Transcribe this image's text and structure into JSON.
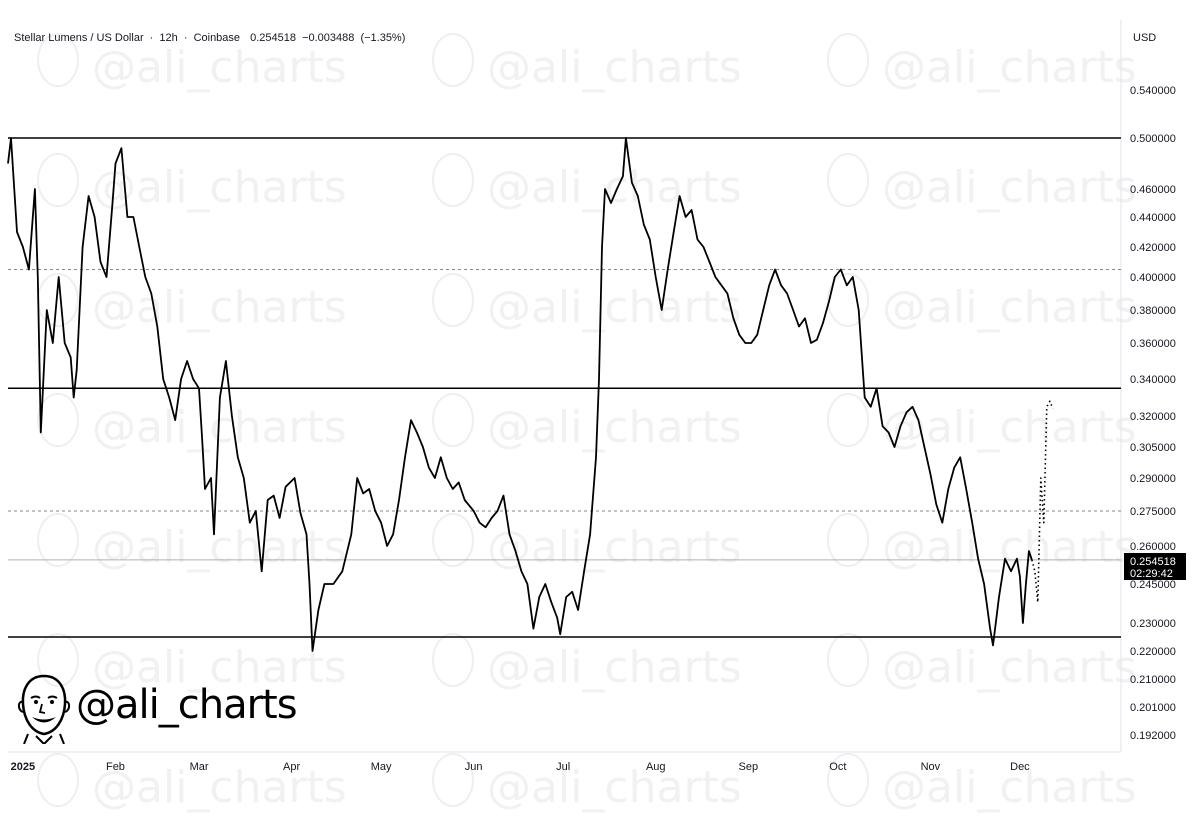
{
  "header": {
    "symbol": "Stellar Lumens / US Dollar",
    "interval": "12h",
    "exchange": "Coinbase",
    "last": "0.254518",
    "change": "−0.003488",
    "change_pct": "(−1.35%)",
    "currency": "USD"
  },
  "price_tag": {
    "value": "0.254518",
    "countdown": "02:29:42"
  },
  "branding": {
    "handle": "@ali_charts",
    "watermark": "@ali_charts"
  },
  "chart_data": {
    "type": "line",
    "title": "Stellar Lumens / US Dollar · 12h · Coinbase",
    "ylabel": "USD",
    "y_ticks": [
      "0.540000",
      "0.500000",
      "0.460000",
      "0.440000",
      "0.420000",
      "0.400000",
      "0.380000",
      "0.360000",
      "0.340000",
      "0.320000",
      "0.305000",
      "0.290000",
      "0.275000",
      "0.260000",
      "0.245000",
      "0.230000",
      "0.220000",
      "0.210000",
      "0.201000",
      "0.192000"
    ],
    "x_ticks": [
      "2025",
      "Feb",
      "Mar",
      "Apr",
      "May",
      "Jun",
      "Jul",
      "Aug",
      "Sep",
      "Oct",
      "Nov",
      "Dec"
    ],
    "x_range": [
      "2024-12-27",
      "2025-12-08"
    ],
    "grid": false,
    "horizontal_levels": [
      {
        "value": 0.5,
        "style": "solid"
      },
      {
        "value": 0.405,
        "style": "dashed"
      },
      {
        "value": 0.335,
        "style": "solid"
      },
      {
        "value": 0.275,
        "style": "dashed"
      },
      {
        "value": 0.2545,
        "style": "thin"
      },
      {
        "value": 0.225,
        "style": "solid"
      }
    ],
    "series": [
      {
        "line": "solid",
        "points": [
          [
            "2024-12-27",
            0.48
          ],
          [
            "2024-12-28",
            0.5
          ],
          [
            "2024-12-30",
            0.43
          ],
          [
            "2025-01-01",
            0.42
          ],
          [
            "2025-01-03",
            0.405
          ],
          [
            "2025-01-05",
            0.46
          ],
          [
            "2025-01-06",
            0.4
          ],
          [
            "2025-01-07",
            0.312
          ],
          [
            "2025-01-09",
            0.38
          ],
          [
            "2025-01-11",
            0.36
          ],
          [
            "2025-01-13",
            0.4
          ],
          [
            "2025-01-15",
            0.36
          ],
          [
            "2025-01-17",
            0.352
          ],
          [
            "2025-01-18",
            0.33
          ],
          [
            "2025-01-19",
            0.345
          ],
          [
            "2025-01-21",
            0.42
          ],
          [
            "2025-01-23",
            0.455
          ],
          [
            "2025-01-25",
            0.44
          ],
          [
            "2025-01-27",
            0.41
          ],
          [
            "2025-01-29",
            0.4
          ],
          [
            "2025-01-31",
            0.45
          ],
          [
            "2025-02-01",
            0.48
          ],
          [
            "2025-02-03",
            0.492
          ],
          [
            "2025-02-05",
            0.44
          ],
          [
            "2025-02-07",
            0.44
          ],
          [
            "2025-02-09",
            0.42
          ],
          [
            "2025-02-11",
            0.4
          ],
          [
            "2025-02-13",
            0.39
          ],
          [
            "2025-02-15",
            0.37
          ],
          [
            "2025-02-17",
            0.34
          ],
          [
            "2025-02-19",
            0.33
          ],
          [
            "2025-02-21",
            0.318
          ],
          [
            "2025-02-23",
            0.34
          ],
          [
            "2025-02-25",
            0.35
          ],
          [
            "2025-02-27",
            0.34
          ],
          [
            "2025-03-01",
            0.335
          ],
          [
            "2025-03-02",
            0.31
          ],
          [
            "2025-03-03",
            0.285
          ],
          [
            "2025-03-05",
            0.29
          ],
          [
            "2025-03-06",
            0.265
          ],
          [
            "2025-03-08",
            0.33
          ],
          [
            "2025-03-10",
            0.35
          ],
          [
            "2025-03-12",
            0.32
          ],
          [
            "2025-03-14",
            0.3
          ],
          [
            "2025-03-16",
            0.29
          ],
          [
            "2025-03-18",
            0.27
          ],
          [
            "2025-03-20",
            0.275
          ],
          [
            "2025-03-22",
            0.25
          ],
          [
            "2025-03-24",
            0.28
          ],
          [
            "2025-03-26",
            0.282
          ],
          [
            "2025-03-28",
            0.272
          ],
          [
            "2025-03-30",
            0.286
          ],
          [
            "2025-04-02",
            0.29
          ],
          [
            "2025-04-04",
            0.274
          ],
          [
            "2025-04-06",
            0.265
          ],
          [
            "2025-04-07",
            0.245
          ],
          [
            "2025-04-08",
            0.22
          ],
          [
            "2025-04-10",
            0.235
          ],
          [
            "2025-04-12",
            0.245
          ],
          [
            "2025-04-15",
            0.245
          ],
          [
            "2025-04-18",
            0.25
          ],
          [
            "2025-04-21",
            0.265
          ],
          [
            "2025-04-23",
            0.29
          ],
          [
            "2025-04-25",
            0.283
          ],
          [
            "2025-04-27",
            0.285
          ],
          [
            "2025-04-29",
            0.275
          ],
          [
            "2025-05-01",
            0.27
          ],
          [
            "2025-05-03",
            0.26
          ],
          [
            "2025-05-05",
            0.265
          ],
          [
            "2025-05-07",
            0.28
          ],
          [
            "2025-05-09",
            0.3
          ],
          [
            "2025-05-11",
            0.318
          ],
          [
            "2025-05-13",
            0.312
          ],
          [
            "2025-05-15",
            0.305
          ],
          [
            "2025-05-17",
            0.295
          ],
          [
            "2025-05-19",
            0.29
          ],
          [
            "2025-05-21",
            0.3
          ],
          [
            "2025-05-23",
            0.29
          ],
          [
            "2025-05-25",
            0.285
          ],
          [
            "2025-05-27",
            0.288
          ],
          [
            "2025-05-29",
            0.28
          ],
          [
            "2025-06-01",
            0.275
          ],
          [
            "2025-06-03",
            0.27
          ],
          [
            "2025-06-05",
            0.268
          ],
          [
            "2025-06-07",
            0.272
          ],
          [
            "2025-06-09",
            0.275
          ],
          [
            "2025-06-11",
            0.282
          ],
          [
            "2025-06-13",
            0.265
          ],
          [
            "2025-06-15",
            0.258
          ],
          [
            "2025-06-17",
            0.25
          ],
          [
            "2025-06-19",
            0.245
          ],
          [
            "2025-06-21",
            0.228
          ],
          [
            "2025-06-23",
            0.24
          ],
          [
            "2025-06-25",
            0.245
          ],
          [
            "2025-06-27",
            0.238
          ],
          [
            "2025-06-29",
            0.232
          ],
          [
            "2025-06-30",
            0.226
          ],
          [
            "2025-07-02",
            0.24
          ],
          [
            "2025-07-04",
            0.242
          ],
          [
            "2025-07-06",
            0.235
          ],
          [
            "2025-07-08",
            0.25
          ],
          [
            "2025-07-10",
            0.265
          ],
          [
            "2025-07-12",
            0.3
          ],
          [
            "2025-07-13",
            0.34
          ],
          [
            "2025-07-14",
            0.42
          ],
          [
            "2025-07-15",
            0.46
          ],
          [
            "2025-07-17",
            0.45
          ],
          [
            "2025-07-19",
            0.46
          ],
          [
            "2025-07-21",
            0.47
          ],
          [
            "2025-07-22",
            0.5
          ],
          [
            "2025-07-24",
            0.465
          ],
          [
            "2025-07-26",
            0.455
          ],
          [
            "2025-07-28",
            0.435
          ],
          [
            "2025-07-30",
            0.425
          ],
          [
            "2025-08-01",
            0.4
          ],
          [
            "2025-08-03",
            0.38
          ],
          [
            "2025-08-05",
            0.405
          ],
          [
            "2025-08-07",
            0.43
          ],
          [
            "2025-08-09",
            0.455
          ],
          [
            "2025-08-11",
            0.44
          ],
          [
            "2025-08-13",
            0.445
          ],
          [
            "2025-08-15",
            0.425
          ],
          [
            "2025-08-17",
            0.42
          ],
          [
            "2025-08-19",
            0.41
          ],
          [
            "2025-08-21",
            0.4
          ],
          [
            "2025-08-23",
            0.395
          ],
          [
            "2025-08-25",
            0.39
          ],
          [
            "2025-08-27",
            0.375
          ],
          [
            "2025-08-29",
            0.365
          ],
          [
            "2025-08-31",
            0.36
          ],
          [
            "2025-09-02",
            0.36
          ],
          [
            "2025-09-04",
            0.365
          ],
          [
            "2025-09-06",
            0.38
          ],
          [
            "2025-09-08",
            0.395
          ],
          [
            "2025-09-10",
            0.405
          ],
          [
            "2025-09-12",
            0.395
          ],
          [
            "2025-09-14",
            0.39
          ],
          [
            "2025-09-16",
            0.38
          ],
          [
            "2025-09-18",
            0.37
          ],
          [
            "2025-09-20",
            0.375
          ],
          [
            "2025-09-22",
            0.36
          ],
          [
            "2025-09-24",
            0.362
          ],
          [
            "2025-09-26",
            0.372
          ],
          [
            "2025-09-28",
            0.385
          ],
          [
            "2025-09-30",
            0.4
          ],
          [
            "2025-10-02",
            0.405
          ],
          [
            "2025-10-04",
            0.395
          ],
          [
            "2025-10-06",
            0.4
          ],
          [
            "2025-10-08",
            0.38
          ],
          [
            "2025-10-10",
            0.33
          ],
          [
            "2025-10-12",
            0.325
          ],
          [
            "2025-10-14",
            0.335
          ],
          [
            "2025-10-16",
            0.315
          ],
          [
            "2025-10-18",
            0.312
          ],
          [
            "2025-10-20",
            0.305
          ],
          [
            "2025-10-22",
            0.315
          ],
          [
            "2025-10-24",
            0.322
          ],
          [
            "2025-10-26",
            0.325
          ],
          [
            "2025-10-28",
            0.318
          ],
          [
            "2025-10-30",
            0.305
          ],
          [
            "2025-11-01",
            0.292
          ],
          [
            "2025-11-03",
            0.278
          ],
          [
            "2025-11-05",
            0.27
          ],
          [
            "2025-11-07",
            0.285
          ],
          [
            "2025-11-09",
            0.295
          ],
          [
            "2025-11-11",
            0.3
          ],
          [
            "2025-11-13",
            0.285
          ],
          [
            "2025-11-15",
            0.27
          ],
          [
            "2025-11-17",
            0.255
          ],
          [
            "2025-11-19",
            0.245
          ],
          [
            "2025-11-21",
            0.228
          ],
          [
            "2025-11-22",
            0.222
          ],
          [
            "2025-11-24",
            0.24
          ],
          [
            "2025-11-26",
            0.255
          ],
          [
            "2025-11-28",
            0.25
          ],
          [
            "2025-11-30",
            0.255
          ],
          [
            "2025-12-01",
            0.248
          ],
          [
            "2025-12-02",
            0.23
          ],
          [
            "2025-12-03",
            0.245
          ],
          [
            "2025-12-04",
            0.258
          ],
          [
            "2025-12-05",
            0.2545
          ]
        ]
      },
      {
        "line": "dotted",
        "points": [
          [
            "2025-12-05",
            0.2545
          ],
          [
            "2025-12-06",
            0.25
          ],
          [
            "2025-12-07",
            0.238
          ],
          [
            "2025-12-08",
            0.29
          ],
          [
            "2025-12-09",
            0.27
          ],
          [
            "2025-12-10",
            0.325
          ],
          [
            "2025-12-11",
            0.328
          ],
          [
            "2025-12-12",
            0.324
          ]
        ]
      }
    ]
  }
}
